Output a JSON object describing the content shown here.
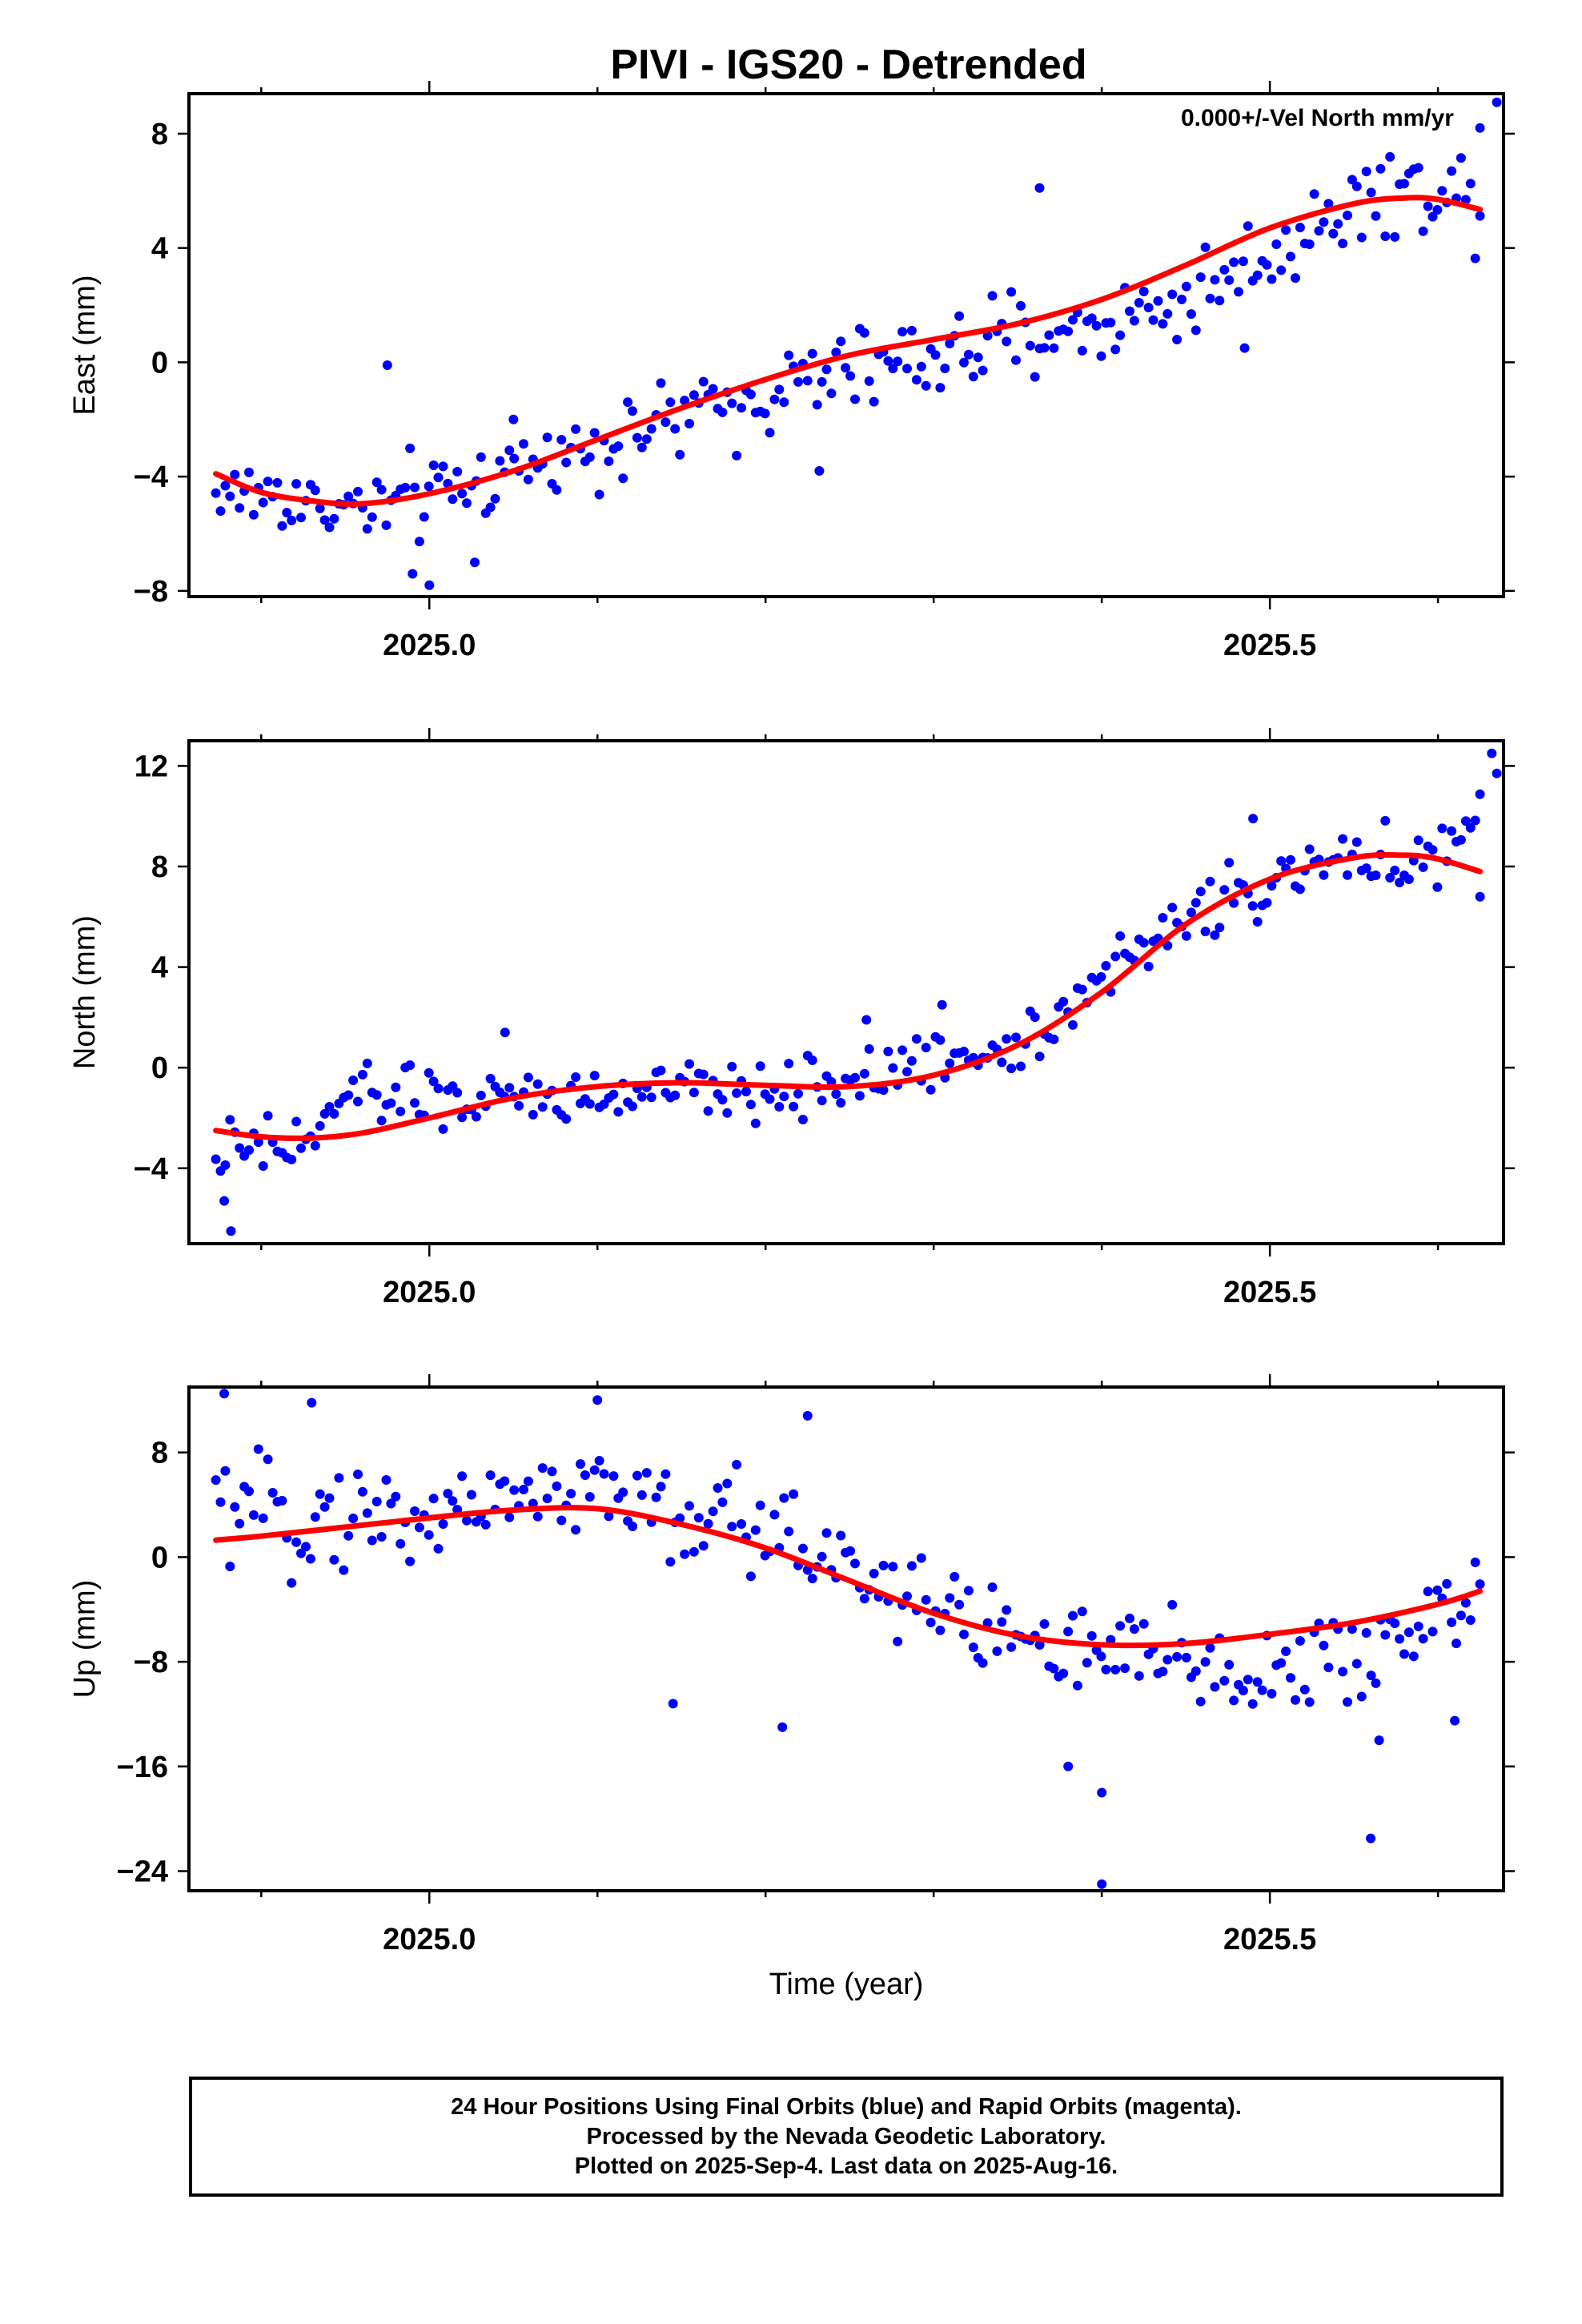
{
  "figure": {
    "title": "PIVI - IGS20 - Detrended",
    "annotation": "0.000+/-Vel North mm/yr",
    "xlabel": "Time (year)",
    "footer_lines": [
      "24 Hour Positions Using Final Orbits (blue) and Rapid Orbits (magenta).",
      "Processed by the Nevada Geodetic Laboratory.",
      "Plotted on 2025-Sep-4. Last data on 2025-Aug-16."
    ]
  },
  "chart_data": [
    {
      "type": "scatter",
      "ylabel": "East (mm)",
      "xlim": [
        2024.857,
        2025.639
      ],
      "ylim": [
        -8.2,
        9.4
      ],
      "xticks": [
        2025.0,
        2025.5
      ],
      "xtick_labels": [
        "2025.0",
        "2025.5"
      ],
      "yticks": [
        -8,
        -4,
        0,
        4,
        8
      ],
      "yticklabels": [
        "−8",
        "−4",
        "0",
        "4",
        "8"
      ],
      "series": [
        {
          "color": "#0000ff",
          "start": 2024.873,
          "end": 2025.625,
          "knots": [
            [
              2024.873,
              -4.6
            ],
            [
              2024.9,
              -4.6
            ],
            [
              2024.93,
              -4.9
            ],
            [
              2024.96,
              -5.2
            ],
            [
              2025.0,
              -4.8
            ],
            [
              2025.05,
              -3.7
            ],
            [
              2025.1,
              -2.8
            ],
            [
              2025.15,
              -2.0
            ],
            [
              2025.2,
              -1.1
            ],
            [
              2025.25,
              -0.3
            ],
            [
              2025.3,
              0.2
            ],
            [
              2025.35,
              0.8
            ],
            [
              2025.4,
              1.3
            ],
            [
              2025.45,
              2.2
            ],
            [
              2025.5,
              3.8
            ],
            [
              2025.55,
              5.6
            ],
            [
              2025.6,
              6.2
            ],
            [
              2025.625,
              5.6
            ]
          ],
          "spread": 1.25,
          "outliers": [
            [
              2024.975,
              -0.1
            ],
            [
              2025.0,
              -7.8
            ],
            [
              2024.99,
              -7.4
            ],
            [
              2025.027,
              -7.0
            ],
            [
              2025.363,
              6.1
            ],
            [
              2025.485,
              0.5
            ],
            [
              2025.635,
              9.1
            ],
            [
              2025.625,
              8.2
            ],
            [
              2025.232,
              -3.8
            ],
            [
              2025.05,
              -2.0
            ]
          ]
        }
      ],
      "model": {
        "color": "#ff0000",
        "points": [
          [
            2024.873,
            -3.9
          ],
          [
            2024.9,
            -4.55
          ],
          [
            2024.93,
            -4.85
          ],
          [
            2024.96,
            -4.95
          ],
          [
            2025.0,
            -4.6
          ],
          [
            2025.05,
            -3.8
          ],
          [
            2025.1,
            -2.7
          ],
          [
            2025.15,
            -1.6
          ],
          [
            2025.2,
            -0.6
          ],
          [
            2025.25,
            0.25
          ],
          [
            2025.3,
            0.8
          ],
          [
            2025.35,
            1.35
          ],
          [
            2025.4,
            2.2
          ],
          [
            2025.45,
            3.4
          ],
          [
            2025.5,
            4.7
          ],
          [
            2025.55,
            5.55
          ],
          [
            2025.58,
            5.75
          ],
          [
            2025.6,
            5.7
          ],
          [
            2025.625,
            5.35
          ]
        ]
      }
    },
    {
      "type": "scatter",
      "ylabel": "North (mm)",
      "xlim": [
        2024.857,
        2025.639
      ],
      "ylim": [
        -7.0,
        13.0
      ],
      "xticks": [
        2025.0,
        2025.5
      ],
      "xtick_labels": [
        "2025.0",
        "2025.5"
      ],
      "yticks": [
        -4,
        0,
        4,
        8,
        12
      ],
      "yticklabels": [
        "−4",
        "0",
        "4",
        "8",
        "12"
      ],
      "series": [
        {
          "color": "#0000ff",
          "start": 2024.873,
          "end": 2025.625,
          "knots": [
            [
              2024.873,
              -3.5
            ],
            [
              2024.9,
              -3.3
            ],
            [
              2024.93,
              -3.0
            ],
            [
              2024.95,
              -1.0
            ],
            [
              2025.0,
              -1.2
            ],
            [
              2025.05,
              -1.3
            ],
            [
              2025.1,
              -1.2
            ],
            [
              2025.15,
              -0.9
            ],
            [
              2025.2,
              -1.0
            ],
            [
              2025.25,
              -0.5
            ],
            [
              2025.3,
              0.2
            ],
            [
              2025.35,
              1.0
            ],
            [
              2025.4,
              3.5
            ],
            [
              2025.45,
              6.0
            ],
            [
              2025.5,
              7.3
            ],
            [
              2025.55,
              8.3
            ],
            [
              2025.6,
              8.3
            ],
            [
              2025.625,
              10.0
            ]
          ],
          "spread": 1.0,
          "outliers": [
            [
              2024.882,
              -6.5
            ],
            [
              2024.878,
              -5.3
            ],
            [
              2025.045,
              1.4
            ],
            [
              2025.26,
              1.9
            ],
            [
              2025.305,
              2.5
            ],
            [
              2025.49,
              9.9
            ],
            [
              2025.632,
              12.5
            ],
            [
              2025.635,
              11.7
            ],
            [
              2025.625,
              6.8
            ]
          ]
        }
      ],
      "model": {
        "color": "#ff0000",
        "points": [
          [
            2024.873,
            -2.5
          ],
          [
            2024.9,
            -2.75
          ],
          [
            2024.93,
            -2.8
          ],
          [
            2024.96,
            -2.6
          ],
          [
            2025.0,
            -2.0
          ],
          [
            2025.05,
            -1.2
          ],
          [
            2025.1,
            -0.75
          ],
          [
            2025.15,
            -0.6
          ],
          [
            2025.2,
            -0.7
          ],
          [
            2025.25,
            -0.75
          ],
          [
            2025.3,
            -0.3
          ],
          [
            2025.35,
            0.9
          ],
          [
            2025.4,
            3.0
          ],
          [
            2025.45,
            5.7
          ],
          [
            2025.5,
            7.5
          ],
          [
            2025.55,
            8.35
          ],
          [
            2025.58,
            8.45
          ],
          [
            2025.6,
            8.3
          ],
          [
            2025.625,
            7.8
          ]
        ]
      }
    },
    {
      "type": "scatter",
      "ylabel": "Up (mm)",
      "xlabel": "Time (year)",
      "xlim": [
        2024.857,
        2025.639
      ],
      "ylim": [
        -25.5,
        13.0
      ],
      "xticks": [
        2025.0,
        2025.5
      ],
      "xtick_labels": [
        "2025.0",
        "2025.5"
      ],
      "yticks": [
        -24,
        -16,
        -8,
        0,
        8
      ],
      "yticklabels": [
        "−24",
        "−16",
        "−8",
        "0",
        "8"
      ],
      "series": [
        {
          "color": "#0000ff",
          "start": 2024.873,
          "end": 2025.625,
          "knots": [
            [
              2024.873,
              3.5
            ],
            [
              2024.9,
              3.0
            ],
            [
              2024.93,
              3.0
            ],
            [
              2024.96,
              3.5
            ],
            [
              2025.0,
              3.0
            ],
            [
              2025.05,
              5.0
            ],
            [
              2025.1,
              5.0
            ],
            [
              2025.15,
              3.0
            ],
            [
              2025.2,
              2.0
            ],
            [
              2025.25,
              0.0
            ],
            [
              2025.3,
              -4.0
            ],
            [
              2025.35,
              -6.0
            ],
            [
              2025.4,
              -8.0
            ],
            [
              2025.45,
              -8.0
            ],
            [
              2025.5,
              -9.0
            ],
            [
              2025.55,
              -8.0
            ],
            [
              2025.6,
              -4.0
            ],
            [
              2025.625,
              -2.5
            ]
          ],
          "spread": 3.4,
          "outliers": [
            [
              2024.878,
              12.5
            ],
            [
              2024.93,
              11.8
            ],
            [
              2025.1,
              12.0
            ],
            [
              2025.145,
              -11.2
            ],
            [
              2025.21,
              -13.0
            ],
            [
              2025.225,
              10.8
            ],
            [
              2025.38,
              -16.0
            ],
            [
              2025.4,
              -18.0
            ],
            [
              2025.4,
              -25.0
            ],
            [
              2025.56,
              -21.5
            ],
            [
              2025.565,
              -14.0
            ],
            [
              2025.61,
              -12.5
            ]
          ]
        }
      ],
      "model": {
        "color": "#ff0000",
        "points": [
          [
            2024.873,
            1.3
          ],
          [
            2024.9,
            1.6
          ],
          [
            2024.95,
            2.3
          ],
          [
            2025.0,
            3.0
          ],
          [
            2025.05,
            3.6
          ],
          [
            2025.1,
            3.7
          ],
          [
            2025.15,
            2.5
          ],
          [
            2025.2,
            0.7
          ],
          [
            2025.25,
            -1.8
          ],
          [
            2025.3,
            -4.3
          ],
          [
            2025.35,
            -6.0
          ],
          [
            2025.4,
            -6.7
          ],
          [
            2025.45,
            -6.6
          ],
          [
            2025.5,
            -5.9
          ],
          [
            2025.55,
            -5.0
          ],
          [
            2025.6,
            -3.6
          ],
          [
            2025.625,
            -2.6
          ]
        ]
      }
    }
  ]
}
